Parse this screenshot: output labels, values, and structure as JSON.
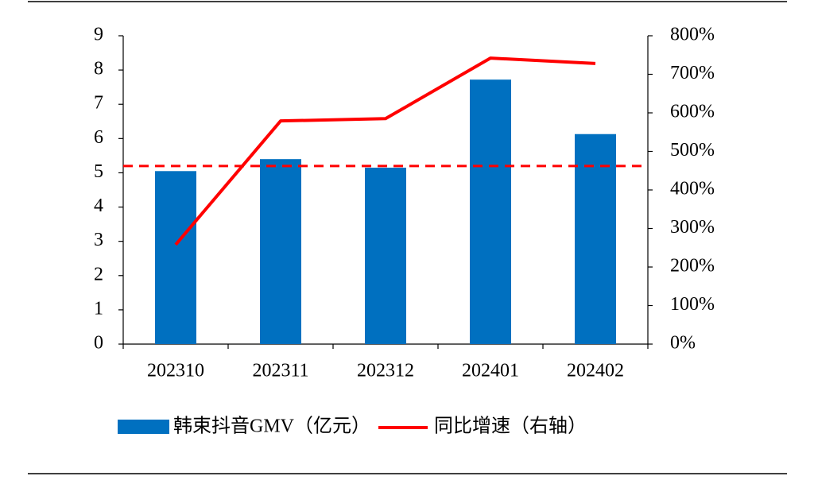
{
  "chart_data": {
    "type": "bar",
    "categories": [
      "202310",
      "202311",
      "202312",
      "202401",
      "202402"
    ],
    "series": [
      {
        "name": "韩束抖音GMV（亿元）",
        "type": "bar",
        "color": "#0070c0",
        "values": [
          5.05,
          5.4,
          5.15,
          7.72,
          6.13
        ]
      },
      {
        "name": "同比增速（右轴）",
        "type": "line",
        "axis": "y2",
        "color": "#ff0000",
        "values": [
          258,
          579,
          585,
          742,
          728
        ]
      }
    ],
    "ylim": [
      0,
      9
    ],
    "yticks": [
      0,
      1,
      2,
      3,
      4,
      5,
      6,
      7,
      8,
      9
    ],
    "y2lim": [
      0,
      800
    ],
    "y2ticks": [
      {
        "value": 0,
        "label": "0%"
      },
      {
        "value": 100,
        "label": "100%"
      },
      {
        "value": 200,
        "label": "200%"
      },
      {
        "value": 300,
        "label": "300%"
      },
      {
        "value": 400,
        "label": "400%"
      },
      {
        "value": 500,
        "label": "500%"
      },
      {
        "value": 600,
        "label": "600%"
      },
      {
        "value": 700,
        "label": "700%"
      },
      {
        "value": 800,
        "label": "800%"
      }
    ],
    "reference_line": {
      "value": 462,
      "axis": "y2",
      "color": "#ff0000",
      "style": "dashed"
    },
    "legend": "bottom"
  }
}
